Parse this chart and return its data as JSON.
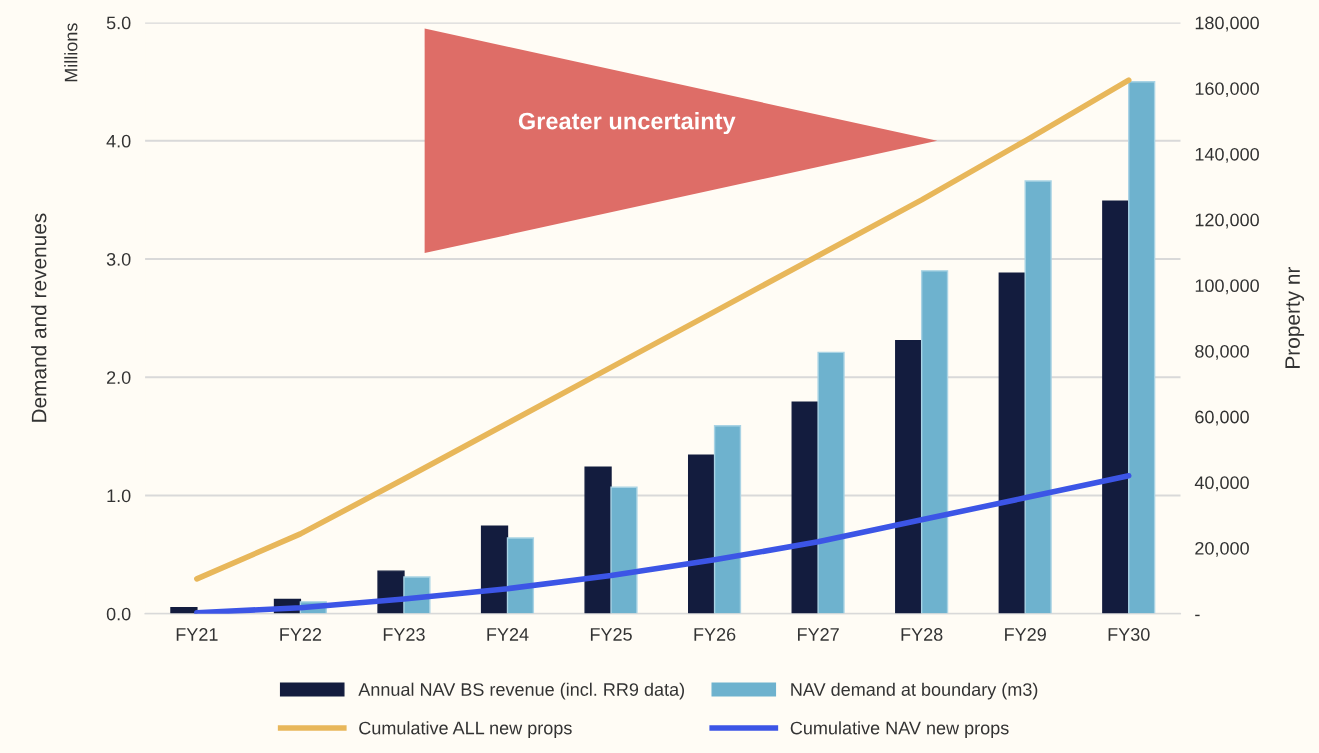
{
  "chart_data": {
    "type": "bar",
    "categories": [
      "FY21",
      "FY22",
      "FY23",
      "FY24",
      "FY25",
      "FY26",
      "FY27",
      "FY28",
      "FY29",
      "FY30"
    ],
    "series": [
      {
        "name": "Annual NAV BS revenue (incl. RR9 data)",
        "color": "#131c3e",
        "values": [
          0.05,
          0.12,
          0.36,
          0.74,
          1.24,
          1.34,
          1.79,
          2.31,
          2.88,
          3.49
        ]
      },
      {
        "name": "NAV demand at boundary (m3)",
        "color": "#6eb2ce",
        "values": [
          null,
          0.1,
          0.31,
          0.64,
          1.07,
          1.59,
          2.21,
          2.9,
          3.66,
          4.5
        ]
      },
      {
        "name": "Cumulative ALL new props",
        "type": "line",
        "axis": "y2",
        "color": "#e8b75a",
        "values": [
          10600,
          24300,
          41000,
          58000,
          75000,
          92000,
          109000,
          126000,
          144000,
          162500
        ]
      },
      {
        "name": "Cumulative NAV new props",
        "type": "line",
        "axis": "y2",
        "color": "#3c55e6",
        "values": [
          300,
          1800,
          4500,
          7600,
          11600,
          16400,
          21900,
          28600,
          35300,
          42000
        ]
      }
    ],
    "ylabel": "Demand and revenues",
    "y2label": "Property nr",
    "ylim": [
      0,
      5
    ],
    "yticks": [
      {
        "value": 0,
        "label": "0.0"
      },
      {
        "value": 1,
        "label": "1.0"
      },
      {
        "value": 2,
        "label": "2.0"
      },
      {
        "value": 3,
        "label": "3.0"
      },
      {
        "value": 4,
        "label": "4.0"
      },
      {
        "value": 5,
        "label": "5.0"
      }
    ],
    "y2lim": [
      0,
      180000
    ],
    "y2ticks": [
      {
        "value": 0,
        "label": "-"
      },
      {
        "value": 20000,
        "label": "20,000"
      },
      {
        "value": 40000,
        "label": "40,000"
      },
      {
        "value": 60000,
        "label": "60,000"
      },
      {
        "value": 80000,
        "label": "80,000"
      },
      {
        "value": 100000,
        "label": "100,000"
      },
      {
        "value": 120000,
        "label": "120,000"
      },
      {
        "value": 140000,
        "label": "140,000"
      },
      {
        "value": 160000,
        "label": "160,000"
      },
      {
        "value": 180000,
        "label": "180,000"
      }
    ],
    "annotations": [
      "Millions",
      "Greater uncertainty"
    ],
    "grid": "y",
    "legend": "bottom",
    "line_style": "solid",
    "marker": "none"
  }
}
